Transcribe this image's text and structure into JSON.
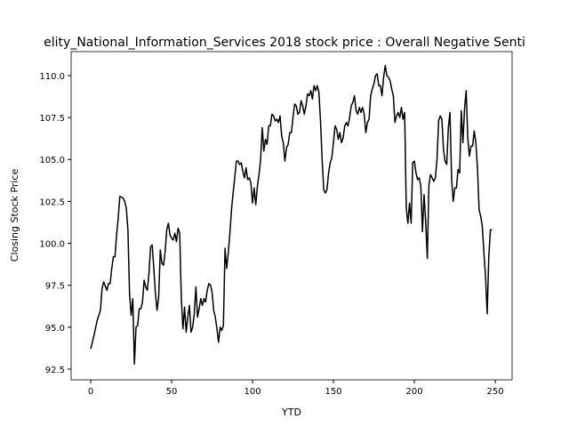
{
  "chart_data": {
    "type": "line",
    "title": "elity_National_Information_Services 2018 stock price : Overall Negative Senti",
    "x_label": "YTD",
    "y_label": "Closing Stock Price",
    "x": [
      0,
      2,
      4,
      6,
      7,
      8,
      10,
      11,
      12,
      13,
      14,
      15,
      16,
      17,
      18,
      20,
      21,
      22,
      23,
      24,
      25,
      26,
      27,
      28,
      29,
      30,
      31,
      32,
      33,
      34,
      35,
      36,
      37,
      38,
      39,
      40,
      41,
      42,
      43,
      44,
      45,
      46,
      47,
      48,
      49,
      50,
      51,
      52,
      53,
      54,
      55,
      56,
      57,
      58,
      59,
      60,
      61,
      62,
      63,
      64,
      65,
      66,
      67,
      68,
      69,
      70,
      71,
      72,
      73,
      74,
      75,
      76,
      77,
      78,
      79,
      80,
      81,
      82,
      83,
      84,
      85,
      86,
      87,
      88,
      89,
      90,
      91,
      92,
      93,
      94,
      95,
      96,
      97,
      98,
      99,
      100,
      101,
      102,
      103,
      104,
      105,
      106,
      107,
      108,
      109,
      110,
      111,
      112,
      113,
      114,
      115,
      116,
      117,
      118,
      119,
      120,
      121,
      122,
      123,
      124,
      125,
      126,
      127,
      128,
      129,
      130,
      131,
      132,
      133,
      134,
      135,
      136,
      137,
      138,
      139,
      140,
      141,
      142,
      143,
      144,
      145,
      146,
      147,
      148,
      149,
      150,
      151,
      152,
      153,
      154,
      155,
      156,
      157,
      158,
      159,
      160,
      161,
      162,
      163,
      164,
      165,
      166,
      167,
      168,
      169,
      170,
      171,
      172,
      173,
      174,
      175,
      176,
      177,
      178,
      179,
      180,
      181,
      182,
      183,
      184,
      185,
      186,
      187,
      188,
      189,
      190,
      191,
      192,
      193,
      194,
      195,
      196,
      197,
      198,
      199,
      200,
      201,
      202,
      203,
      204,
      205,
      206,
      207,
      208,
      209,
      210,
      211,
      212,
      213,
      214,
      215,
      216,
      217,
      218,
      219,
      220,
      221,
      222,
      223,
      224,
      225,
      226,
      227,
      228,
      229,
      230,
      231,
      232,
      233,
      234,
      235,
      236,
      237,
      238,
      239,
      240,
      241,
      242,
      243,
      244,
      245,
      246,
      247,
      248
    ],
    "series": [
      {
        "color": "#000000",
        "values": [
          93.7,
          94.5,
          95.4,
          96.0,
          97.3,
          97.7,
          97.2,
          97.6,
          97.6,
          98.5,
          99.2,
          99.2,
          100.5,
          101.5,
          102.8,
          102.7,
          102.5,
          102.1,
          100.8,
          97.0,
          95.7,
          96.7,
          92.8,
          95.0,
          95.1,
          96.1,
          96.1,
          96.5,
          97.8,
          97.4,
          97.2,
          98.2,
          99.8,
          99.9,
          98.5,
          97.0,
          96.0,
          96.8,
          99.6,
          98.8,
          98.7,
          99.5,
          100.8,
          101.2,
          100.5,
          100.3,
          100.2,
          100.6,
          100.1,
          100.9,
          100.6,
          96.7,
          94.9,
          96.2,
          94.7,
          95.6,
          96.3,
          94.7,
          95.0,
          95.8,
          97.4,
          95.6,
          96.1,
          96.7,
          96.3,
          96.7,
          96.5,
          97.2,
          97.6,
          97.5,
          97.1,
          96.0,
          95.6,
          94.9,
          94.1,
          95.0,
          94.8,
          95.1,
          99.7,
          98.5,
          99.4,
          100.6,
          102.0,
          103.0,
          103.9,
          104.9,
          104.9,
          104.7,
          104.8,
          104.3,
          103.9,
          104.5,
          103.8,
          103.9,
          103.6,
          102.4,
          103.3,
          102.3,
          103.4,
          104.1,
          105.0,
          106.9,
          105.5,
          106.2,
          105.9,
          107.0,
          107.0,
          107.7,
          107.6,
          107.3,
          107.4,
          107.2,
          107.6,
          106.4,
          106.0,
          104.9,
          105.7,
          105.9,
          106.6,
          106.6,
          107.5,
          108.3,
          108.2,
          107.7,
          107.8,
          108.5,
          108.2,
          107.7,
          108.2,
          108.9,
          108.8,
          109.1,
          108.6,
          109.4,
          109.1,
          109.4,
          109.0,
          107.3,
          105.0,
          103.2,
          103.0,
          103.2,
          104.2,
          104.8,
          105.1,
          106.0,
          107.0,
          106.8,
          106.2,
          106.6,
          106.0,
          106.3,
          107.0,
          107.2,
          107.0,
          107.5,
          108.2,
          108.4,
          108.8,
          107.9,
          107.7,
          108.1,
          107.8,
          108.1,
          107.7,
          106.6,
          107.2,
          107.4,
          108.8,
          109.2,
          109.5,
          110.0,
          110.1,
          109.4,
          109.4,
          108.8,
          109.9,
          110.6,
          110.0,
          109.9,
          109.7,
          109.2,
          108.8,
          107.2,
          107.6,
          107.8,
          107.5,
          108.1,
          107.4,
          107.8,
          102.1,
          101.2,
          102.4,
          101.2,
          104.8,
          104.9,
          104.2,
          103.8,
          103.9,
          103.4,
          100.7,
          102.9,
          101.3,
          99.1,
          103.5,
          104.1,
          103.9,
          103.7,
          103.9,
          105.0,
          107.3,
          107.6,
          107.4,
          105.6,
          104.9,
          104.7,
          106.9,
          107.8,
          103.9,
          102.5,
          103.3,
          103.3,
          104.4,
          104.2,
          107.9,
          106.0,
          108.0,
          109.1,
          106.3,
          105.2,
          105.8,
          105.8,
          106.7,
          106.0,
          104.5,
          102.0,
          101.6,
          101.0,
          99.4,
          98.0,
          95.8,
          99.2,
          100.8,
          100.8
        ]
      }
    ],
    "xlim": [
      -12.1,
      260.4
    ],
    "xticks": [
      0,
      50,
      100,
      150,
      200,
      250
    ],
    "ylim": [
      91.86,
      111.43
    ],
    "yticks": [
      92.5,
      {
        "value": 95,
        "label": "95.0"
      },
      97.5,
      {
        "value": 100,
        "label": "100.0"
      },
      102.5,
      {
        "value": 105,
        "label": "105.0"
      },
      107.5,
      {
        "value": 110,
        "label": "110.0"
      }
    ],
    "grid": false
  }
}
